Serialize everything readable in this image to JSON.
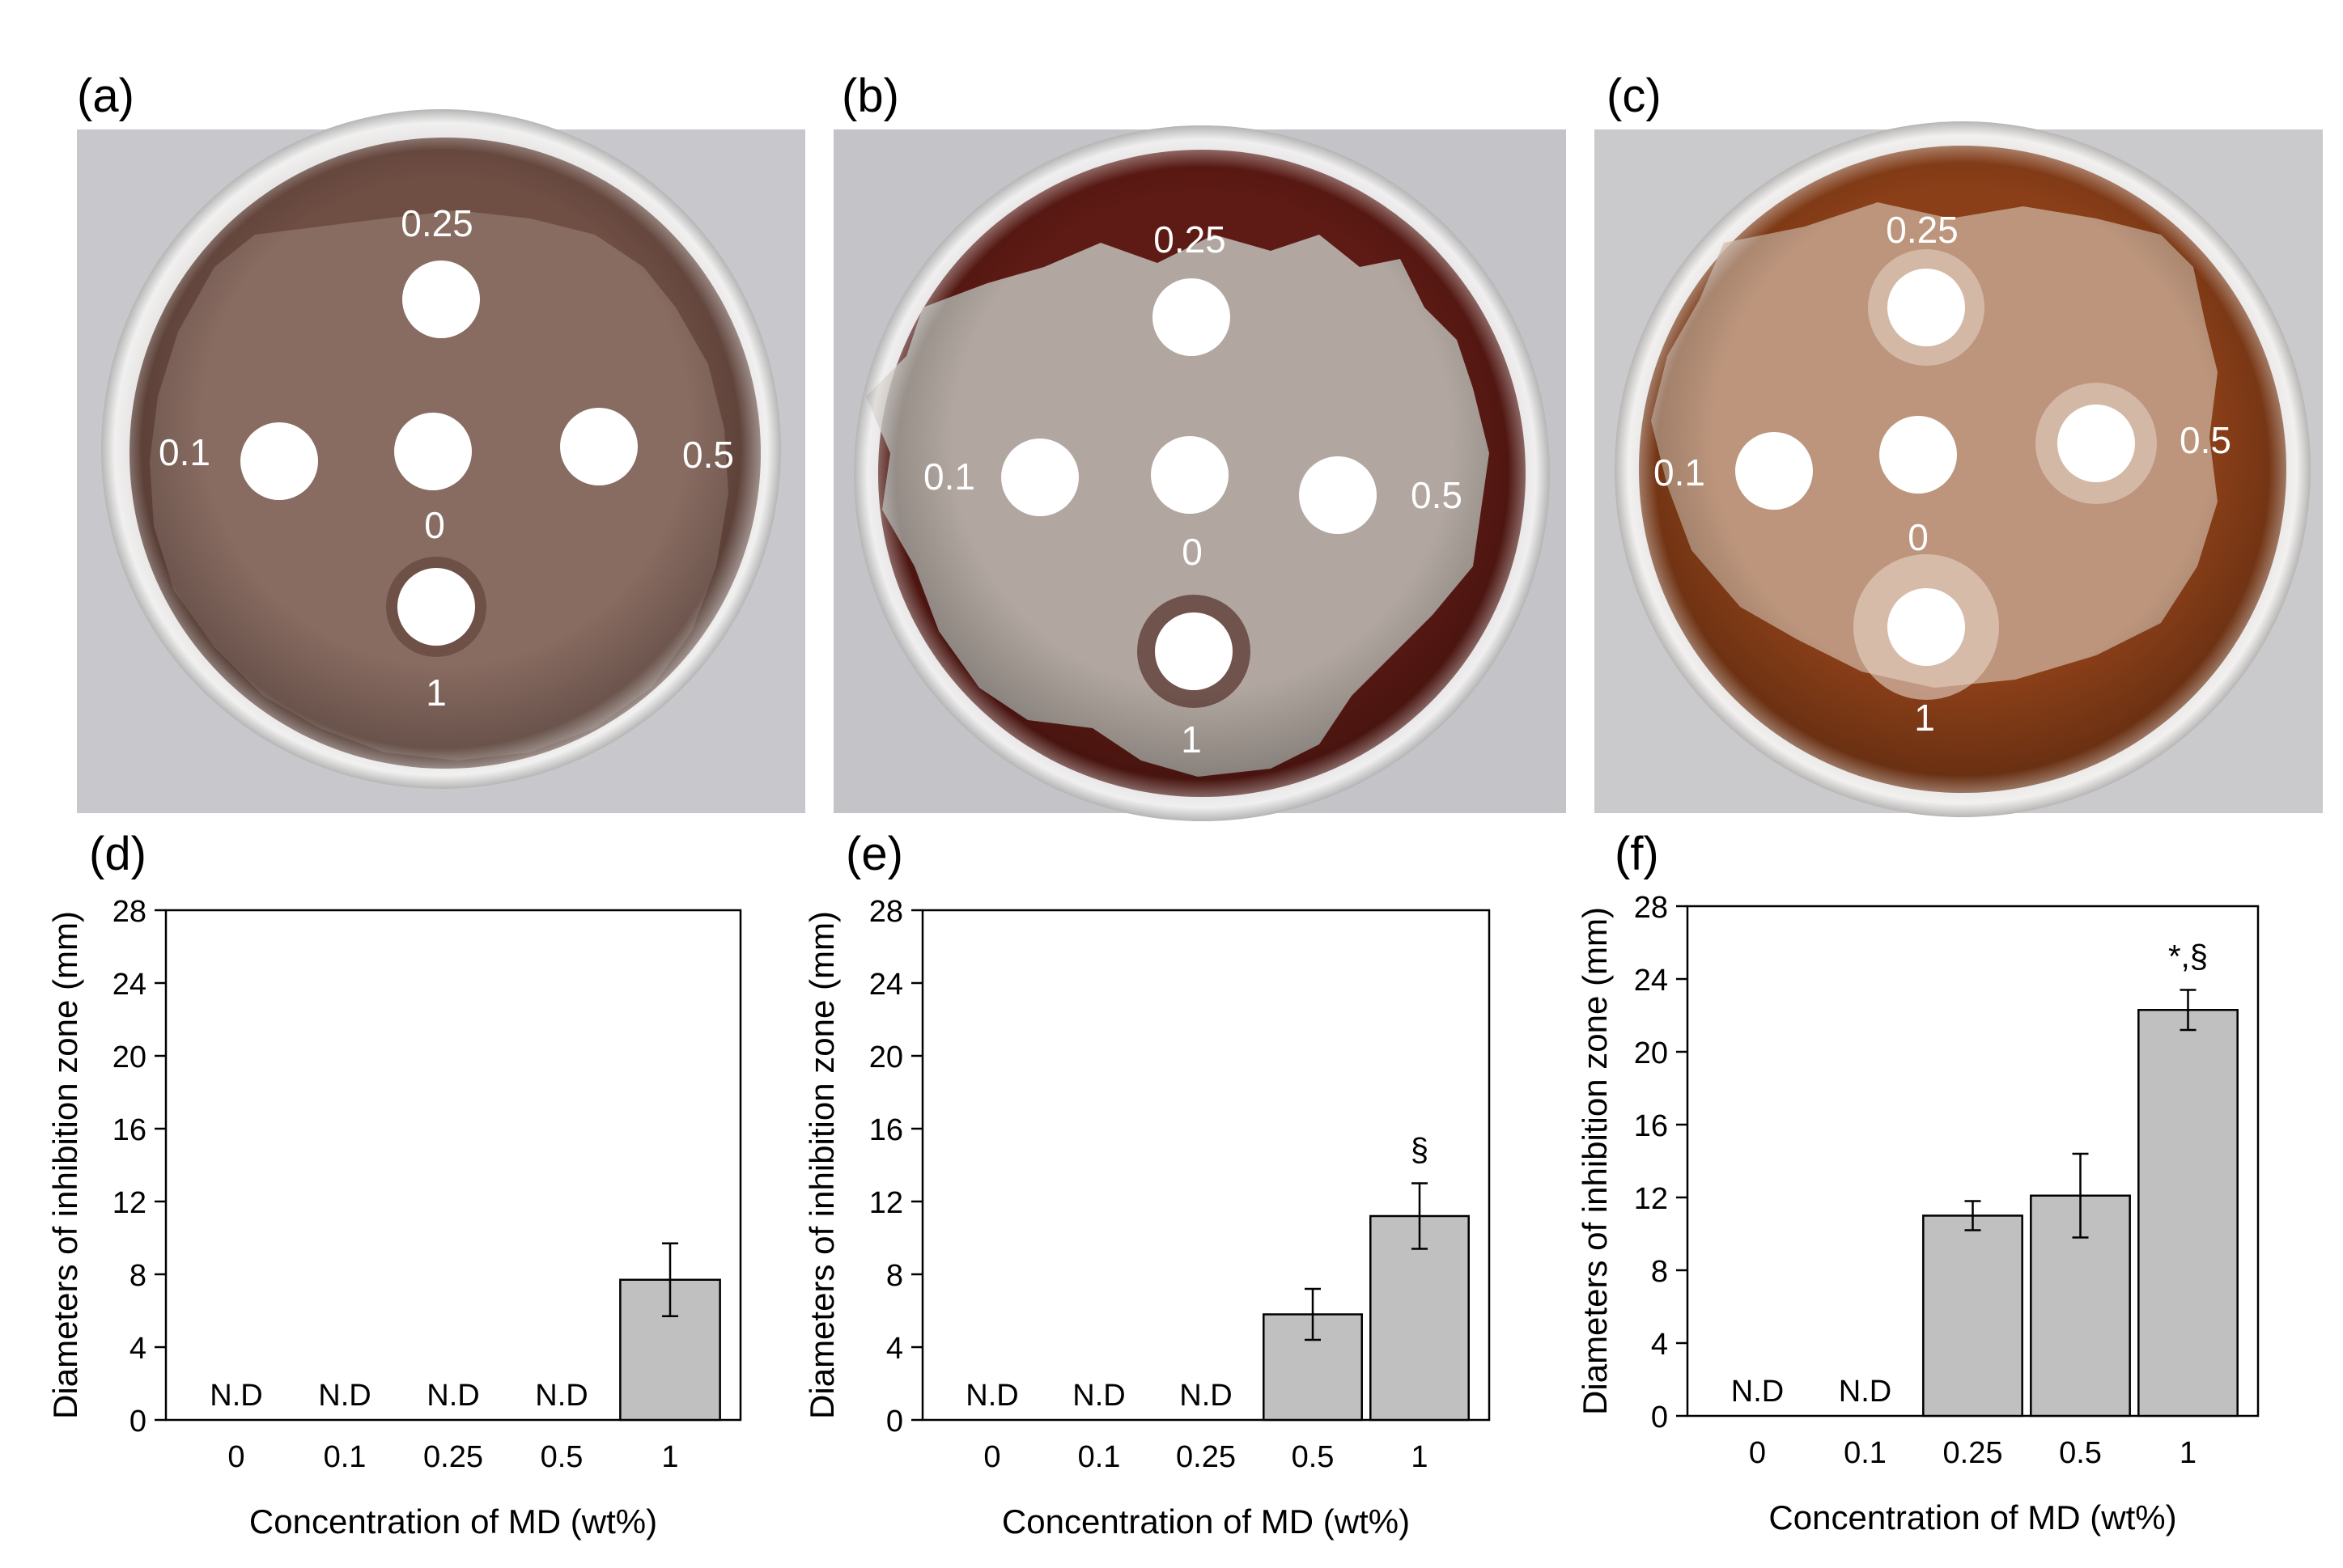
{
  "photos": [
    {
      "panel_label": "(a)",
      "disc_labels": [
        "0.25",
        "0.1",
        "0",
        "0.5",
        "1"
      ],
      "colors": {
        "background": "#c8c8cc",
        "agar": "#6f4e44",
        "rim": "#e0dedd",
        "growth": "#8a6e64"
      }
    },
    {
      "panel_label": "(b)",
      "disc_labels": [
        "0.25",
        "0.1",
        "0",
        "0.5",
        "1"
      ],
      "colors": {
        "background": "#c4c4c8",
        "agar": "#5e1a14",
        "rim": "#dedbdb",
        "growth": "#b8b3ad"
      }
    },
    {
      "panel_label": "(c)",
      "disc_labels": [
        "0.25",
        "0.1",
        "0",
        "0.5",
        "1"
      ],
      "colors": {
        "background": "#cacacd",
        "agar": "#8a3f18",
        "rim": "#e2dfdd",
        "growth": "#c09c86"
      }
    }
  ],
  "chart_data": [
    {
      "type": "bar",
      "panel_label": "(d)",
      "title": "",
      "xlabel": "Concentration of MD (wt%)",
      "ylabel": "Diameters of inhibition zone (mm)",
      "categories": [
        "0",
        "0.1",
        "0.25",
        "0.5",
        "1"
      ],
      "values": [
        0,
        0,
        0,
        0,
        7.7
      ],
      "errors": [
        0,
        0,
        0,
        0,
        2.0
      ],
      "bar_labels": [
        "N.D",
        "N.D",
        "N.D",
        "N.D",
        ""
      ],
      "significance": [
        "",
        "",
        "",
        "",
        ""
      ],
      "ylim": [
        0,
        28
      ],
      "yticks": [
        0,
        4,
        8,
        12,
        16,
        20,
        24,
        28
      ],
      "bar_color": "#c0c0c0",
      "grid": false
    },
    {
      "type": "bar",
      "panel_label": "(e)",
      "title": "",
      "xlabel": "Concentration of MD (wt%)",
      "ylabel": "Diameters of inhibition zone (mm)",
      "categories": [
        "0",
        "0.1",
        "0.25",
        "0.5",
        "1"
      ],
      "values": [
        0,
        0,
        0,
        5.8,
        11.2
      ],
      "errors": [
        0,
        0,
        0,
        1.4,
        1.8
      ],
      "bar_labels": [
        "N.D",
        "N.D",
        "N.D",
        "",
        ""
      ],
      "significance": [
        "",
        "",
        "",
        "",
        "§"
      ],
      "ylim": [
        0,
        28
      ],
      "yticks": [
        0,
        4,
        8,
        12,
        16,
        20,
        24,
        28
      ],
      "bar_color": "#c0c0c0",
      "grid": false
    },
    {
      "type": "bar",
      "panel_label": "(f)",
      "title": "",
      "xlabel": "Concentration of MD (wt%)",
      "ylabel": "Diameters of inhibition zone (mm)",
      "categories": [
        "0",
        "0.1",
        "0.25",
        "0.5",
        "1"
      ],
      "values": [
        0,
        0,
        11.0,
        12.1,
        22.3
      ],
      "errors": [
        0,
        0,
        0.8,
        2.3,
        1.1
      ],
      "bar_labels": [
        "N.D",
        "N.D",
        "",
        "",
        ""
      ],
      "significance": [
        "",
        "",
        "",
        "",
        "*,§"
      ],
      "ylim": [
        0,
        28
      ],
      "yticks": [
        0,
        4,
        8,
        12,
        16,
        20,
        24,
        28
      ],
      "bar_color": "#c0c0c0",
      "grid": false
    }
  ]
}
